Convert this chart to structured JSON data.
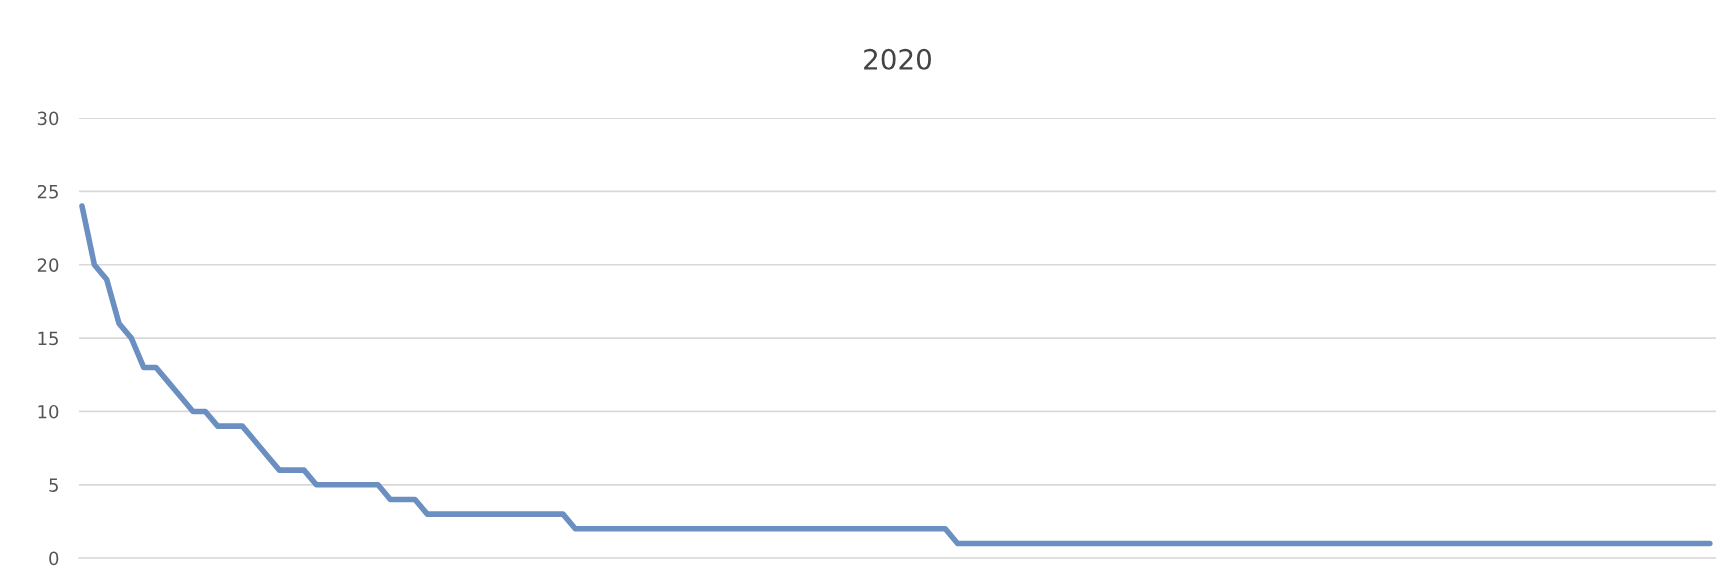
{
  "chart_data": {
    "type": "line",
    "title": "2020",
    "categories": [
      null,
      null,
      null,
      null,
      null,
      null,
      null,
      null,
      null,
      null,
      null,
      null,
      null,
      null,
      null,
      null,
      null,
      null,
      null,
      null,
      null,
      null,
      null,
      null,
      null,
      null,
      null,
      null,
      null,
      null,
      null,
      null,
      null,
      null,
      null,
      null,
      null,
      null,
      null,
      null,
      null,
      null,
      null,
      null,
      null,
      null,
      null,
      null,
      null,
      null,
      null,
      null,
      null,
      null,
      null,
      null,
      null,
      null,
      null,
      null,
      null,
      null,
      null,
      null,
      null,
      null,
      null,
      null,
      null,
      null,
      null,
      null,
      null,
      null,
      null,
      null,
      null,
      null,
      null,
      null,
      null,
      null,
      null,
      null,
      null,
      null,
      null,
      null,
      null,
      null,
      null,
      null,
      null,
      null,
      null,
      null,
      null,
      null,
      null,
      null,
      null,
      null,
      null,
      null,
      null,
      null,
      null,
      null,
      null,
      null,
      null,
      null,
      null,
      null,
      null,
      null,
      null,
      null,
      null,
      null,
      null,
      null,
      null,
      null,
      null,
      null,
      null,
      null,
      null,
      null,
      null,
      null,
      null
    ],
    "series": [
      {
        "color": "#6a8fc0",
        "values": [
          24,
          20,
          19,
          16,
          15,
          13,
          13,
          12,
          11,
          10,
          10,
          9,
          9,
          9,
          8,
          7,
          6,
          6,
          6,
          5,
          5,
          5,
          5,
          5,
          5,
          4,
          4,
          4,
          3,
          3,
          3,
          3,
          3,
          3,
          3,
          3,
          3,
          3,
          3,
          3,
          2,
          2,
          2,
          2,
          2,
          2,
          2,
          2,
          2,
          2,
          2,
          2,
          2,
          2,
          2,
          2,
          2,
          2,
          2,
          2,
          2,
          2,
          2,
          2,
          2,
          2,
          2,
          2,
          2,
          2,
          2,
          1,
          1,
          1,
          1,
          1,
          1,
          1,
          1,
          1,
          1,
          1,
          1,
          1,
          1,
          1,
          1,
          1,
          1,
          1,
          1,
          1,
          1,
          1,
          1,
          1,
          1,
          1,
          1,
          1,
          1,
          1,
          1,
          1,
          1,
          1,
          1,
          1,
          1,
          1,
          1,
          1,
          1,
          1,
          1,
          1,
          1,
          1,
          1,
          1,
          1,
          1,
          1,
          1,
          1,
          1,
          1,
          1,
          1,
          1,
          1,
          1,
          1
        ]
      }
    ],
    "ylim": [
      0,
      30
    ],
    "yticks": [
      0,
      5,
      10,
      15,
      20,
      25,
      30
    ],
    "grid": "y",
    "line_style": "solid"
  }
}
